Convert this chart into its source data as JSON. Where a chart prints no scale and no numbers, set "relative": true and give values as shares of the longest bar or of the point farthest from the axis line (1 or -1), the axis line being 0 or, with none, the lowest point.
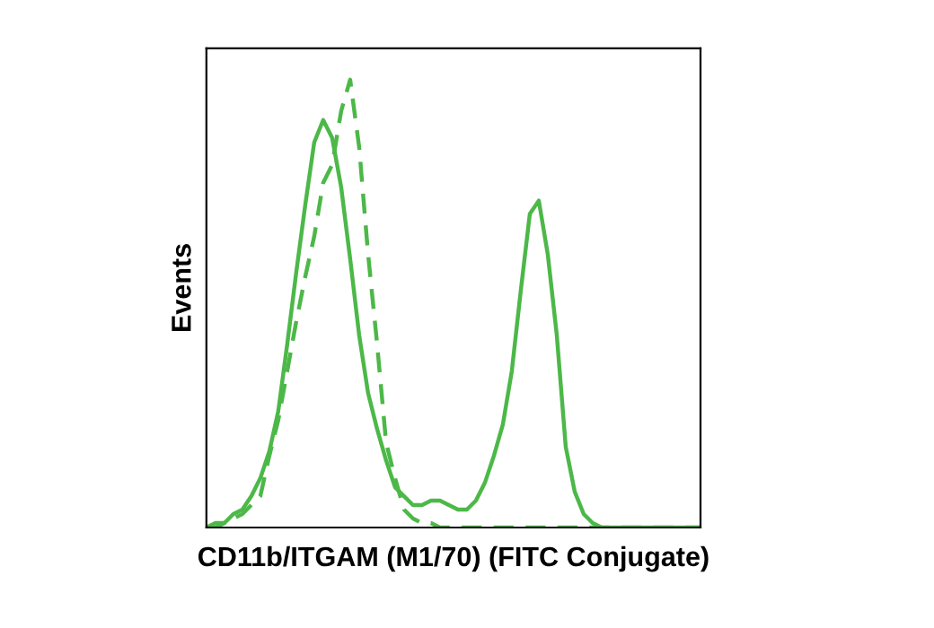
{
  "chart_data": {
    "type": "line",
    "relative": true,
    "xlabel": "CD11b/ITGAM (M1/70) (FITC Conjugate)",
    "ylabel": "Events",
    "categories": [
      null,
      null,
      null,
      null,
      null,
      null,
      null,
      null,
      null,
      null,
      null,
      null,
      null,
      null,
      null,
      null,
      null,
      null,
      null,
      null,
      null,
      null,
      null,
      null,
      null,
      null,
      null,
      null,
      null,
      null,
      null,
      null,
      null,
      null,
      null,
      null,
      null,
      null,
      null,
      null,
      null,
      null,
      null,
      null,
      null,
      null,
      null,
      null,
      null,
      null,
      null,
      null,
      null,
      null,
      null,
      null
    ],
    "series": [
      {
        "color": "#4cb848",
        "line_style": "solid",
        "values": [
          0,
          0.01,
          0.01,
          0.03,
          0.04,
          0.07,
          0.11,
          0.17,
          0.26,
          0.41,
          0.57,
          0.72,
          0.86,
          0.91,
          0.87,
          0.76,
          0.6,
          0.43,
          0.3,
          0.22,
          0.15,
          0.09,
          0.07,
          0.05,
          0.05,
          0.06,
          0.06,
          0.05,
          0.04,
          0.04,
          0.06,
          0.1,
          0.16,
          0.23,
          0.35,
          0.53,
          0.7,
          0.73,
          0.61,
          0.43,
          0.18,
          0.08,
          0.03,
          0.01,
          0,
          0,
          0,
          0,
          0,
          0,
          0,
          0,
          0,
          0,
          0,
          0
        ]
      },
      {
        "color": "#4cb848",
        "line_style": "dashed",
        "values": [
          0,
          0,
          0.01,
          0.02,
          0.03,
          0.05,
          0.07,
          0.16,
          0.24,
          0.35,
          0.46,
          0.56,
          0.65,
          0.77,
          0.81,
          0.93,
          1.0,
          0.85,
          0.61,
          0.41,
          0.19,
          0.11,
          0.04,
          0.02,
          0.01,
          0.01,
          0,
          0,
          0,
          0,
          0,
          0,
          0,
          0,
          0,
          0,
          0,
          0,
          0,
          0,
          0,
          0,
          0,
          0,
          0,
          0,
          0,
          0,
          0,
          0,
          0,
          0,
          0,
          0,
          0,
          0
        ]
      }
    ]
  }
}
